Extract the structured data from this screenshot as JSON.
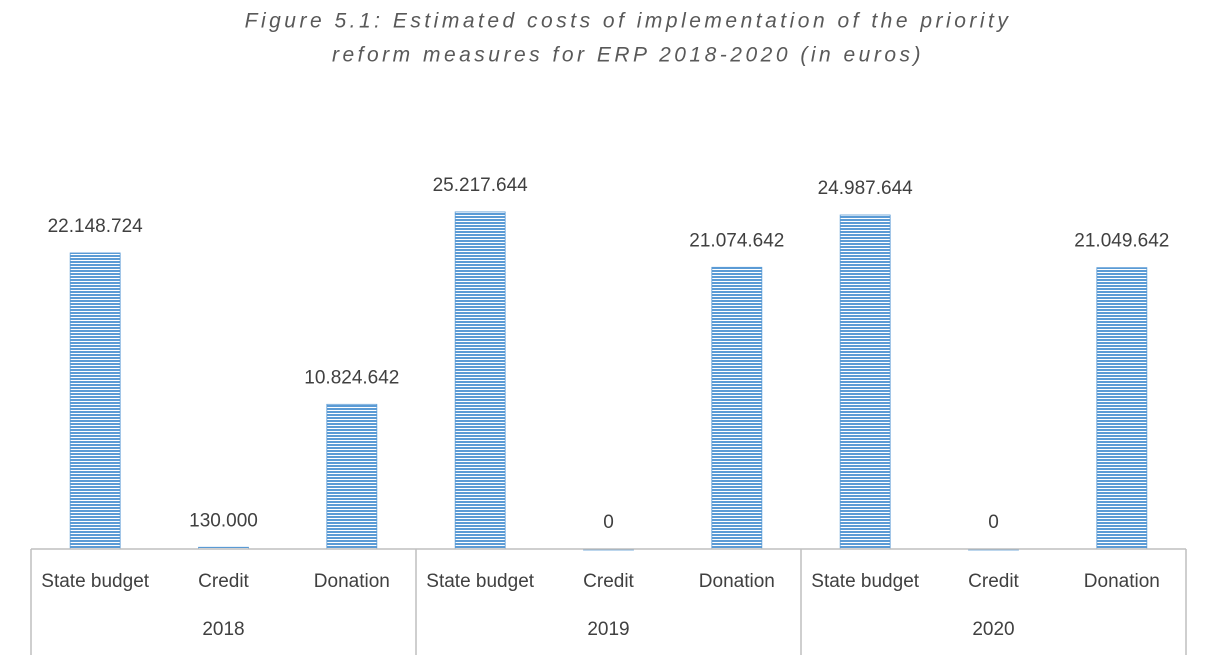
{
  "chart_data": {
    "type": "bar",
    "title": [
      "Figure 5.1: Estimated costs of implementation of the priority",
      "reform measures for ERP 2018-2020 (in euros)"
    ],
    "categories": [
      "State budget",
      "Credit",
      "Donation",
      "State budget",
      "Credit",
      "Donation",
      "State budget",
      "Credit",
      "Donation"
    ],
    "groups": [
      "2018",
      "2019",
      "2020"
    ],
    "values": [
      22148724,
      130000,
      10824642,
      25217644,
      0,
      21074642,
      24987644,
      0,
      21049642
    ],
    "value_labels": [
      "22.148.724",
      "130.000",
      "10.824.642",
      "25.217.644",
      "0",
      "21.074.642",
      "24.987.644",
      "0",
      "21.049.642"
    ],
    "color": "#5b9bd5",
    "ylim": [
      0,
      30000000
    ]
  }
}
